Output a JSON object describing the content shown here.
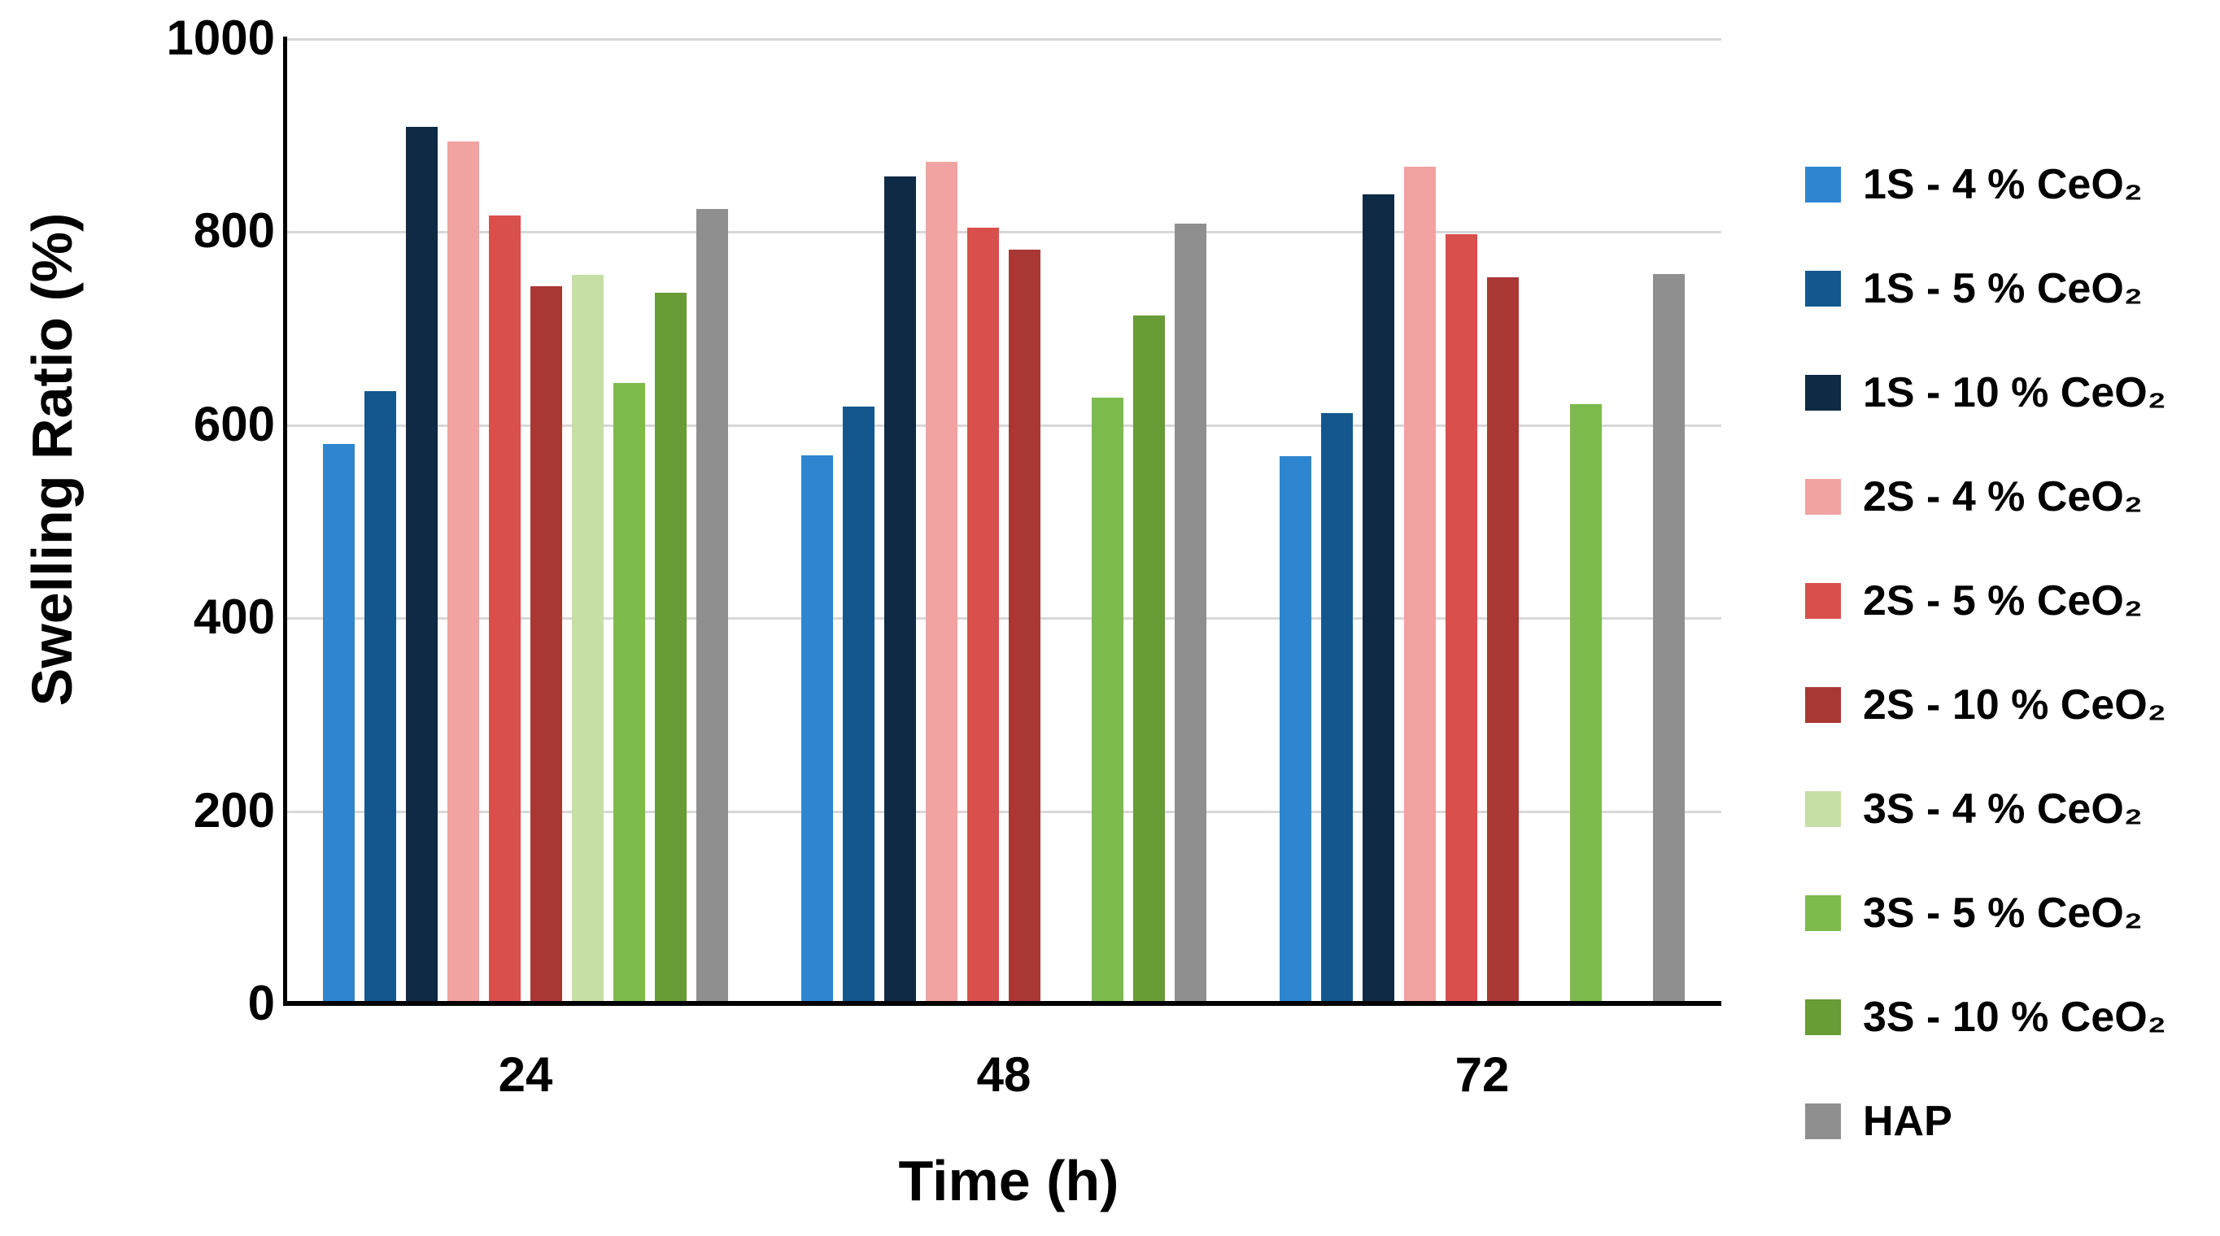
{
  "chart_data": {
    "type": "bar",
    "title": "",
    "xlabel": "Time (h)",
    "ylabel": "Swelling Ratio (%)",
    "categories": [
      "24",
      "48",
      "72"
    ],
    "series": [
      {
        "name": "1S - 4 % CeO₂",
        "color": "#2E86D0",
        "values": [
          580,
          568,
          567
        ]
      },
      {
        "name": "1S - 5 % CeO₂",
        "color": "#14578C",
        "values": [
          634,
          618,
          612
        ]
      },
      {
        "name": "1S - 10 % CeO₂",
        "color": "#0E2A45",
        "values": [
          908,
          857,
          838
        ]
      },
      {
        "name": "2S - 4 % CeO₂",
        "color": "#F0A3A1",
        "values": [
          893,
          872,
          867
        ]
      },
      {
        "name": "2S - 5 % CeO₂",
        "color": "#D94F4C",
        "values": [
          816,
          804,
          797
        ]
      },
      {
        "name": "2S - 10 % CeO₂",
        "color": "#A93835",
        "values": [
          743,
          781,
          752
        ]
      },
      {
        "name": "3S - 4 % CeO₂",
        "color": "#C5DFA5",
        "values": [
          755,
          0,
          0
        ]
      },
      {
        "name": "3S - 5 % CeO₂",
        "color": "#7DBB4C",
        "values": [
          643,
          628,
          621
        ]
      },
      {
        "name": "3S - 10 % CeO₂",
        "color": "#679C36",
        "values": [
          736,
          713,
          0
        ]
      },
      {
        "name": "HAP",
        "color": "#8F8F8F",
        "values": [
          823,
          808,
          756
        ]
      }
    ],
    "y_ticks": [
      0,
      200,
      400,
      600,
      800,
      1000
    ],
    "ylim": [
      0,
      1000
    ],
    "grid": true,
    "legend_position": "right",
    "colors": {
      "axis": "#000000",
      "gridline": "#D8D8D8",
      "background": "#FFFFFF",
      "text": "#000000"
    }
  }
}
